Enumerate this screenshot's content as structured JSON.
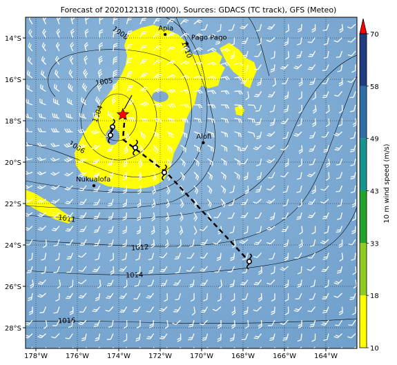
{
  "title": "Forecast of 2020121318 (f000), Sources: GDACS (TC track), GFS (Meteo)",
  "lon_labels": [
    "178°W",
    "176°W",
    "174°W",
    "172°W",
    "170°W",
    "168°W",
    "166°W",
    "164°W"
  ],
  "lat_labels": [
    "14°S",
    "16°S",
    "18°S",
    "20°S",
    "22°S",
    "24°S",
    "26°S",
    "28°S"
  ],
  "places": [
    {
      "name": "Apia",
      "lon": -171.76,
      "lat": -13.83
    },
    {
      "name": "Pago Pago",
      "lon": -170.7,
      "lat": -14.28
    },
    {
      "name": "Alofi",
      "lon": -169.92,
      "lat": -19.06
    },
    {
      "name": "Nukualofa",
      "lon": -175.2,
      "lat": -21.14
    }
  ],
  "isobars": [
    {
      "label": "1004"
    },
    {
      "label": "1005"
    },
    {
      "label": "1006"
    },
    {
      "label": "1008"
    },
    {
      "label": "1010"
    },
    {
      "label": "1011"
    },
    {
      "label": "1012"
    },
    {
      "label": "1014"
    },
    {
      "label": "1016"
    }
  ],
  "track": [
    {
      "lon": -173.7,
      "lat": -17.7
    },
    {
      "lon": -173.8,
      "lat": -18.9
    },
    {
      "lon": -171.7,
      "lat": -20.5
    },
    {
      "lon": -167.7,
      "lat": -24.8
    }
  ],
  "storm_symbols": [
    {
      "lon": -174.3,
      "lat": -18.3
    },
    {
      "lon": -174.4,
      "lat": -18.7
    },
    {
      "lon": -173.2,
      "lat": -19.3
    },
    {
      "lon": -171.8,
      "lat": -20.5
    },
    {
      "lon": -167.7,
      "lat": -24.8
    }
  ],
  "current_position": {
    "lon": -173.8,
    "lat": -17.7
  },
  "colorbar": {
    "label": "10 m wind speed (m/s)",
    "ticks": [
      "10",
      "18",
      "33",
      "43",
      "49",
      "58",
      "70"
    ],
    "colors": [
      "#ffff00",
      "#8fcc1f",
      "#23a32a",
      "#16958e",
      "#2f6fa8",
      "#1f3c82",
      "#ff0000"
    ]
  },
  "map_extent": {
    "lon_min": -178.5,
    "lon_max": -162.5,
    "lat_min": -29.0,
    "lat_max": -13.0
  },
  "colors": {
    "ocean": "#7aa8d1",
    "wind_band": "#ffff00",
    "track": "#000000",
    "marker": "#ff0000"
  }
}
